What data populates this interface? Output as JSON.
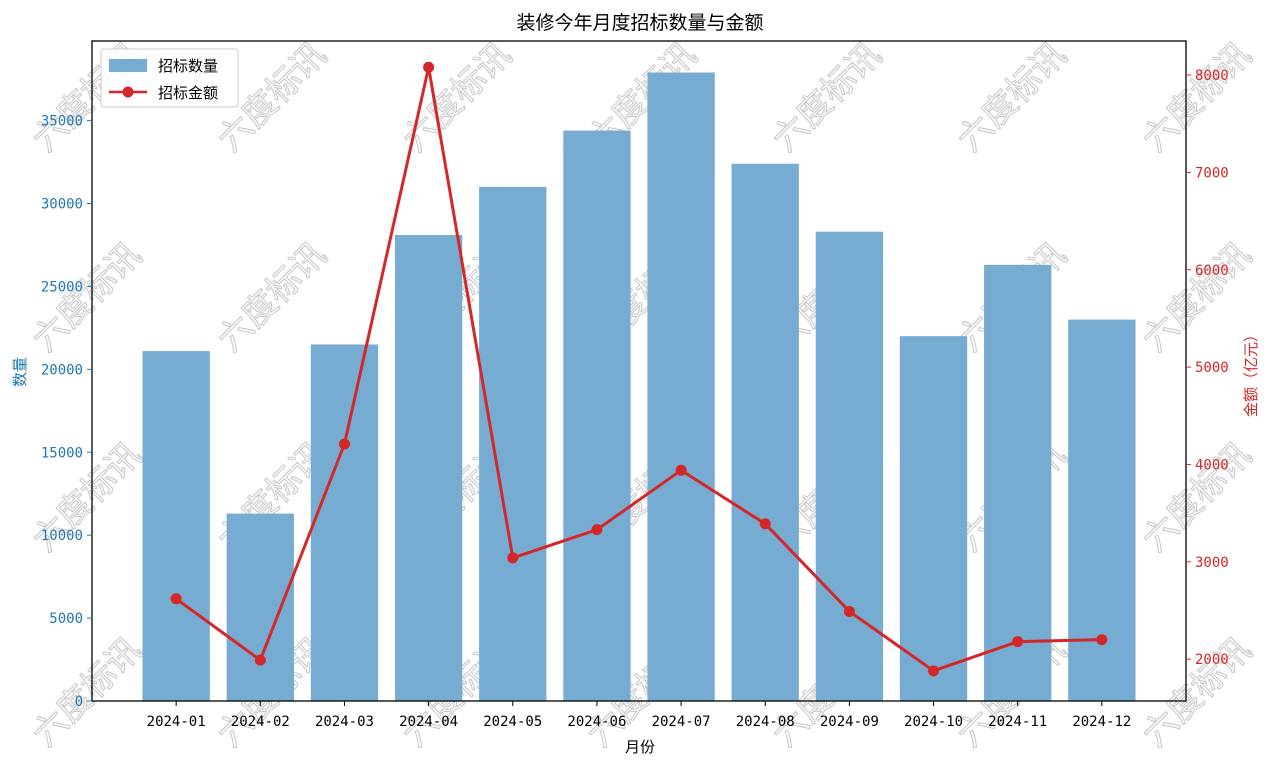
{
  "chart_data": {
    "type": "bar",
    "title": "装修今年月度招标数量与金额",
    "xlabel": "月份",
    "ylabel_left": "数量",
    "ylabel_right": "金额（亿元）",
    "categories": [
      "2024-01",
      "2024-02",
      "2024-03",
      "2024-04",
      "2024-05",
      "2024-06",
      "2024-07",
      "2024-08",
      "2024-09",
      "2024-10",
      "2024-11",
      "2024-12"
    ],
    "series": [
      {
        "name": "招标数量",
        "type": "bar",
        "axis": "left",
        "color": "#76acd2",
        "values": [
          21100,
          11300,
          21500,
          28100,
          31000,
          34400,
          37900,
          32400,
          28300,
          22000,
          26300,
          23000
        ]
      },
      {
        "name": "招标金额",
        "type": "line",
        "axis": "right",
        "color": "#d62728",
        "values": [
          2620,
          1990,
          4210,
          8080,
          3040,
          3330,
          3940,
          3390,
          2490,
          1880,
          2180,
          2200
        ]
      }
    ],
    "ylim_left": [
      0,
      39800
    ],
    "ylim_right": [
      1570,
      8350
    ],
    "yticks_left": [
      0,
      5000,
      10000,
      15000,
      20000,
      25000,
      30000,
      35000
    ],
    "yticks_right": [
      2000,
      3000,
      4000,
      5000,
      6000,
      7000,
      8000
    ],
    "left_axis_color": "#1f77b4",
    "right_axis_color": "#d62728",
    "grid": false,
    "legend": "top-left"
  },
  "watermark": {
    "text": "六度标讯"
  }
}
